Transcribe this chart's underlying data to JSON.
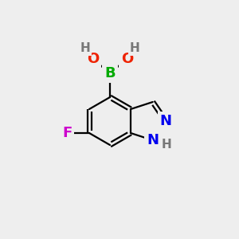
{
  "background_color": "#eeeeee",
  "bond_color": "#000000",
  "bond_width": 1.6,
  "atom_colors": {
    "B": "#00aa00",
    "N": "#0000ee",
    "O": "#ee2200",
    "F": "#cc00cc",
    "H": "#777777",
    "C": "#000000"
  },
  "figsize": [
    3.0,
    3.0
  ],
  "dpi": 100
}
